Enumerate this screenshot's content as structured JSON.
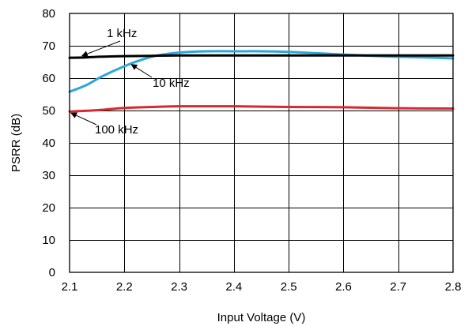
{
  "chart_data": {
    "type": "line",
    "title": "",
    "xlabel": "Input Voltage (V)",
    "ylabel": "PSRR (dB)",
    "xlim": [
      2.1,
      2.8
    ],
    "ylim": [
      0,
      80
    ],
    "x_ticks": [
      2.1,
      2.2,
      2.3,
      2.4,
      2.5,
      2.6,
      2.7,
      2.8
    ],
    "x_tick_labels": [
      "2.1",
      "2.2",
      "2.3",
      "2.4",
      "2.5",
      "2.6",
      "2.7",
      "2.8"
    ],
    "y_ticks": [
      0,
      10,
      20,
      30,
      40,
      50,
      60,
      70,
      80
    ],
    "y_tick_labels": [
      "0",
      "10",
      "20",
      "30",
      "40",
      "50",
      "60",
      "70",
      "80"
    ],
    "grid": true,
    "series": [
      {
        "name": "1 kHz",
        "color": "#000000",
        "x": [
          2.1,
          2.13,
          2.15,
          2.2,
          2.25,
          2.3,
          2.4,
          2.5,
          2.6,
          2.7,
          2.8
        ],
        "values": [
          66.3,
          66.4,
          66.6,
          66.8,
          66.9,
          67.0,
          67.0,
          67.0,
          67.0,
          67.0,
          67.0
        ]
      },
      {
        "name": "10 kHz",
        "color": "#2aa8d8",
        "x": [
          2.1,
          2.13,
          2.16,
          2.2,
          2.23,
          2.26,
          2.3,
          2.35,
          2.4,
          2.45,
          2.5,
          2.55,
          2.6,
          2.65,
          2.7,
          2.75,
          2.8
        ],
        "values": [
          55.8,
          57.8,
          60.6,
          63.7,
          65.6,
          67.0,
          67.9,
          68.3,
          68.3,
          68.3,
          68.1,
          67.7,
          67.3,
          66.9,
          66.6,
          66.4,
          66.1
        ]
      },
      {
        "name": "100 kHz",
        "color": "#d9282f",
        "x": [
          2.1,
          2.15,
          2.2,
          2.25,
          2.3,
          2.4,
          2.5,
          2.6,
          2.7,
          2.8
        ],
        "values": [
          49.7,
          50.1,
          50.8,
          51.1,
          51.3,
          51.3,
          51.1,
          51.0,
          50.7,
          50.6
        ]
      }
    ],
    "annotations": [
      {
        "text": "1 kHz",
        "series": "1 kHz",
        "point": [
          2.12,
          66.4
        ]
      },
      {
        "text": "10 kHz",
        "series": "10 kHz",
        "point": [
          2.21,
          64.7
        ]
      },
      {
        "text": "100 kHz",
        "series": "100 kHz",
        "point": [
          2.1,
          49.7
        ]
      }
    ]
  }
}
